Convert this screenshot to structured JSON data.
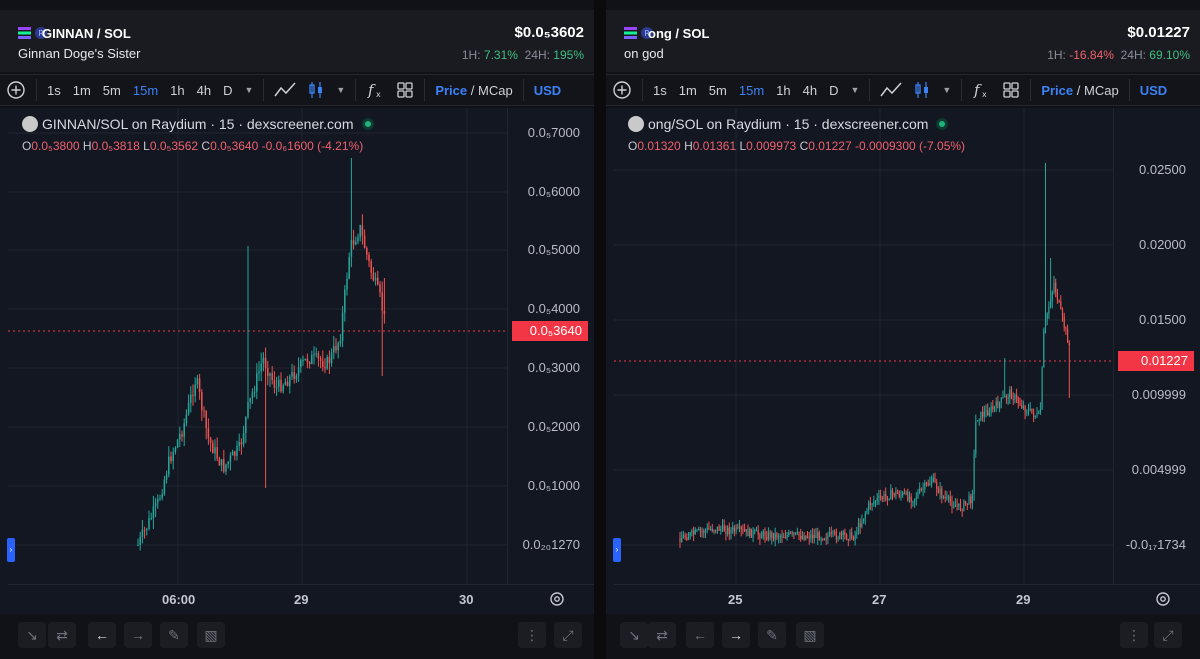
{
  "left": {
    "pair": "GINNAN / SOL",
    "subtitle": "Ginnan Doge's Sister",
    "price": "$0.0₅3602",
    "h1_label": "1H:",
    "h1_value": "7.31%",
    "h24_label": "24H:",
    "h24_value": "195%",
    "legend": "GINNAN/SOL on Raydium · 15 · dexscreener.com",
    "ohlc": {
      "O": "0.0₅3800",
      "H": "0.0₅3818",
      "L": "0.0₅3562",
      "C": "0.0₅3640",
      "change": "-0.0₆1600 (-4.21%)"
    },
    "y_ticks": [
      "0.0₅7000",
      "0.0₅6000",
      "0.0₅5000",
      "0.0₅4000",
      "0.0₅3000",
      "0.0₅2000",
      "0.0₅1000",
      "0.0₂₀1270"
    ],
    "price_tag": "0.0₅3640",
    "x_ticks": [
      "06:00",
      "29",
      "30"
    ]
  },
  "right": {
    "pair": "ong / SOL",
    "subtitle": "on god",
    "price": "$0.01227",
    "h1_label": "1H:",
    "h1_value": "-16.84%",
    "h24_label": "24H:",
    "h24_value": "69.10%",
    "legend": "ong/SOL on Raydium · 15 · dexscreener.com",
    "ohlc": {
      "O": "0.01320",
      "H": "0.01361",
      "L": "0.009973",
      "C": "0.01227",
      "change": "-0.0009300 (-7.05%)"
    },
    "y_ticks": [
      "0.02500",
      "0.02000",
      "0.01500",
      "0.009999",
      "0.004999",
      "-0.0₁₇1734"
    ],
    "price_tag": "0.01227",
    "x_ticks": [
      "25",
      "27",
      "29"
    ]
  },
  "toolbar": {
    "intervals": [
      "1s",
      "1m",
      "5m",
      "15m",
      "1h",
      "4h",
      "D"
    ],
    "active_interval": "15m",
    "price_label": "Price",
    "slash": "/",
    "mcap_label": "MCap",
    "currency": "USD"
  },
  "colors": {
    "up": "#26a69a",
    "down": "#ef5350",
    "accent": "#3b82f6",
    "tag": "#f23645"
  }
}
